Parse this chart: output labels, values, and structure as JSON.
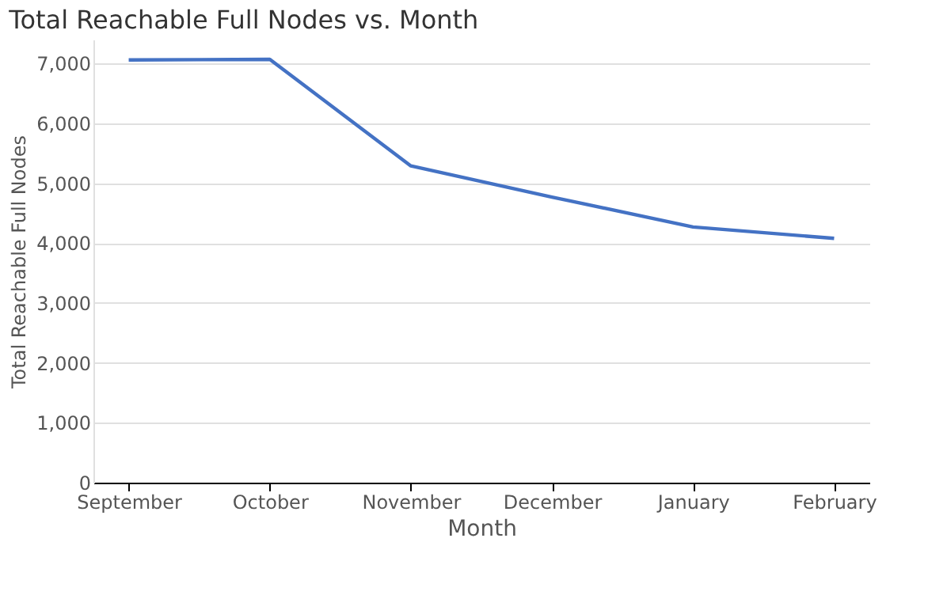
{
  "chart_data": {
    "type": "line",
    "title": "Total Reachable Full Nodes vs. Month",
    "xlabel": "Month",
    "ylabel": "Total Reachable Full Nodes",
    "categories": [
      "September",
      "October",
      "November",
      "December",
      "January",
      "February"
    ],
    "series": [
      {
        "color": "#4472c4",
        "values": [
          7060,
          7070,
          5290,
          4770,
          4270,
          4080
        ]
      }
    ],
    "ylim": [
      0,
      7400
    ],
    "yticks": [
      {
        "value": 0,
        "label": "0"
      },
      {
        "value": 1000,
        "label": "1,000"
      },
      {
        "value": 2000,
        "label": "2,000"
      },
      {
        "value": 3000,
        "label": "3,000"
      },
      {
        "value": 4000,
        "label": "4,000"
      },
      {
        "value": 5000,
        "label": "5,000"
      },
      {
        "value": 6000,
        "label": "6,000"
      },
      {
        "value": 7000,
        "label": "7,000"
      }
    ],
    "grid": "y",
    "legend": false
  }
}
